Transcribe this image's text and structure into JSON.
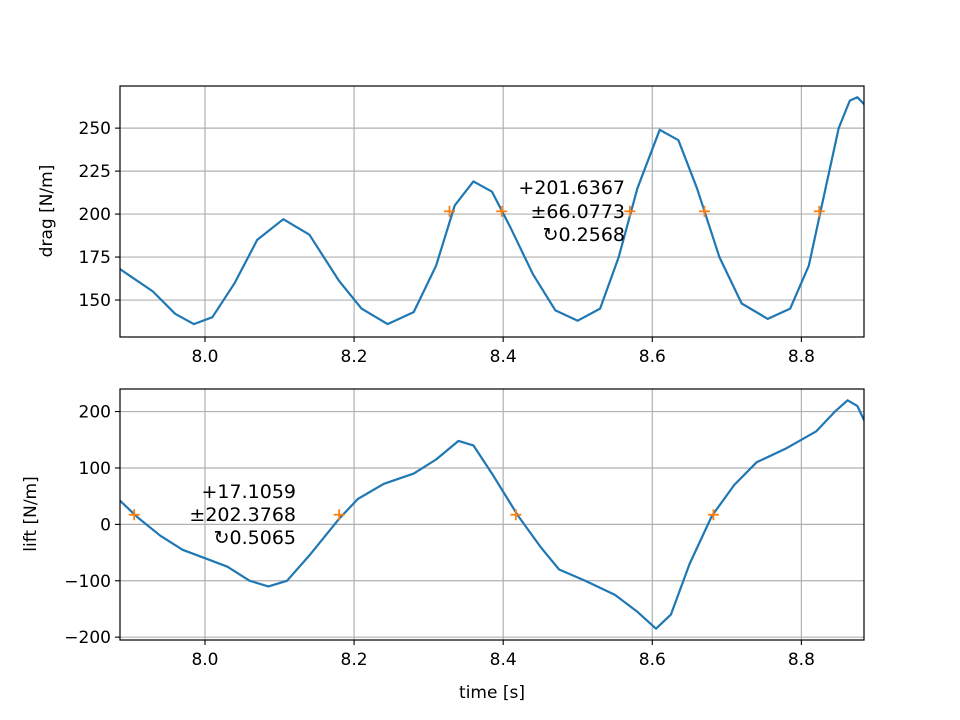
{
  "chart_data": [
    {
      "type": "line",
      "ylabel": "drag [N/m]",
      "xlabel": "",
      "xlim": [
        7.886,
        8.884
      ],
      "ylim": [
        128.5,
        274.5
      ],
      "xticks": [
        8.0,
        8.2,
        8.4,
        8.6,
        8.8
      ],
      "xtick_labels": [
        "8.0",
        "8.2",
        "8.4",
        "8.6",
        "8.8"
      ],
      "yticks": [
        150,
        175,
        200,
        225,
        250
      ],
      "ytick_labels": [
        "150",
        "175",
        "200",
        "225",
        "250"
      ],
      "grid": true,
      "series": [
        {
          "color": "#1f77b4",
          "points": [
            [
              7.886,
              168
            ],
            [
              7.93,
              155
            ],
            [
              7.96,
              142
            ],
            [
              7.985,
              136
            ],
            [
              8.01,
              140
            ],
            [
              8.04,
              160
            ],
            [
              8.07,
              185
            ],
            [
              8.105,
              197
            ],
            [
              8.14,
              188
            ],
            [
              8.18,
              161
            ],
            [
              8.21,
              145
            ],
            [
              8.245,
              136
            ],
            [
              8.28,
              143
            ],
            [
              8.31,
              170
            ],
            [
              8.335,
              205
            ],
            [
              8.36,
              219
            ],
            [
              8.385,
              213
            ],
            [
              8.41,
              192
            ],
            [
              8.44,
              165
            ],
            [
              8.47,
              144
            ],
            [
              8.5,
              138
            ],
            [
              8.53,
              145
            ],
            [
              8.555,
              175
            ],
            [
              8.58,
              215
            ],
            [
              8.61,
              249
            ],
            [
              8.635,
              243
            ],
            [
              8.66,
              215
            ],
            [
              8.69,
              175
            ],
            [
              8.72,
              148
            ],
            [
              8.755,
              139
            ],
            [
              8.785,
              145
            ],
            [
              8.81,
              170
            ],
            [
              8.83,
              210
            ],
            [
              8.85,
              250
            ],
            [
              8.865,
              266
            ],
            [
              8.875,
              268
            ],
            [
              8.884,
              264
            ]
          ]
        }
      ],
      "markers": {
        "symbol": "+",
        "color": "#ff7f0e",
        "y": 201.6,
        "x": [
          8.328,
          8.398,
          8.57,
          8.67,
          8.824
        ]
      },
      "annotation": {
        "lines": [
          "+201.6367",
          "±66.0773",
          "↻0.2568"
        ],
        "anchor_x": 8.57,
        "anchor_y": 201.6
      }
    },
    {
      "type": "line",
      "ylabel": "lift [N/m]",
      "xlabel": "time [s]",
      "xlim": [
        7.886,
        8.884
      ],
      "ylim": [
        -205,
        240
      ],
      "xticks": [
        8.0,
        8.2,
        8.4,
        8.6,
        8.8
      ],
      "xtick_labels": [
        "8.0",
        "8.2",
        "8.4",
        "8.6",
        "8.8"
      ],
      "yticks": [
        -200,
        -100,
        0,
        100,
        200
      ],
      "ytick_labels": [
        "−200",
        "−100",
        "0",
        "100",
        "200"
      ],
      "grid": true,
      "series": [
        {
          "color": "#1f77b4",
          "points": [
            [
              7.886,
              42
            ],
            [
              7.91,
              12
            ],
            [
              7.94,
              -20
            ],
            [
              7.97,
              -45
            ],
            [
              8.0,
              -60
            ],
            [
              8.03,
              -75
            ],
            [
              8.06,
              -100
            ],
            [
              8.085,
              -110
            ],
            [
              8.11,
              -100
            ],
            [
              8.14,
              -55
            ],
            [
              8.18,
              10
            ],
            [
              8.205,
              45
            ],
            [
              8.24,
              72
            ],
            [
              8.28,
              90
            ],
            [
              8.31,
              115
            ],
            [
              8.34,
              148
            ],
            [
              8.36,
              140
            ],
            [
              8.385,
              90
            ],
            [
              8.42,
              15
            ],
            [
              8.45,
              -40
            ],
            [
              8.475,
              -80
            ],
            [
              8.51,
              -100
            ],
            [
              8.55,
              -125
            ],
            [
              8.58,
              -155
            ],
            [
              8.605,
              -185
            ],
            [
              8.625,
              -160
            ],
            [
              8.65,
              -70
            ],
            [
              8.68,
              15
            ],
            [
              8.71,
              70
            ],
            [
              8.74,
              110
            ],
            [
              8.78,
              135
            ],
            [
              8.82,
              165
            ],
            [
              8.845,
              200
            ],
            [
              8.862,
              220
            ],
            [
              8.875,
              210
            ],
            [
              8.884,
              185
            ]
          ]
        }
      ],
      "markers": {
        "symbol": "+",
        "color": "#ff7f0e",
        "y": 17.1,
        "x": [
          7.905,
          8.18,
          8.417,
          8.682
        ]
      },
      "annotation": {
        "lines": [
          "+17.1059",
          "±202.3768",
          "↻0.5065"
        ],
        "anchor_x": 8.12,
        "anchor_y": 17.1
      }
    }
  ]
}
